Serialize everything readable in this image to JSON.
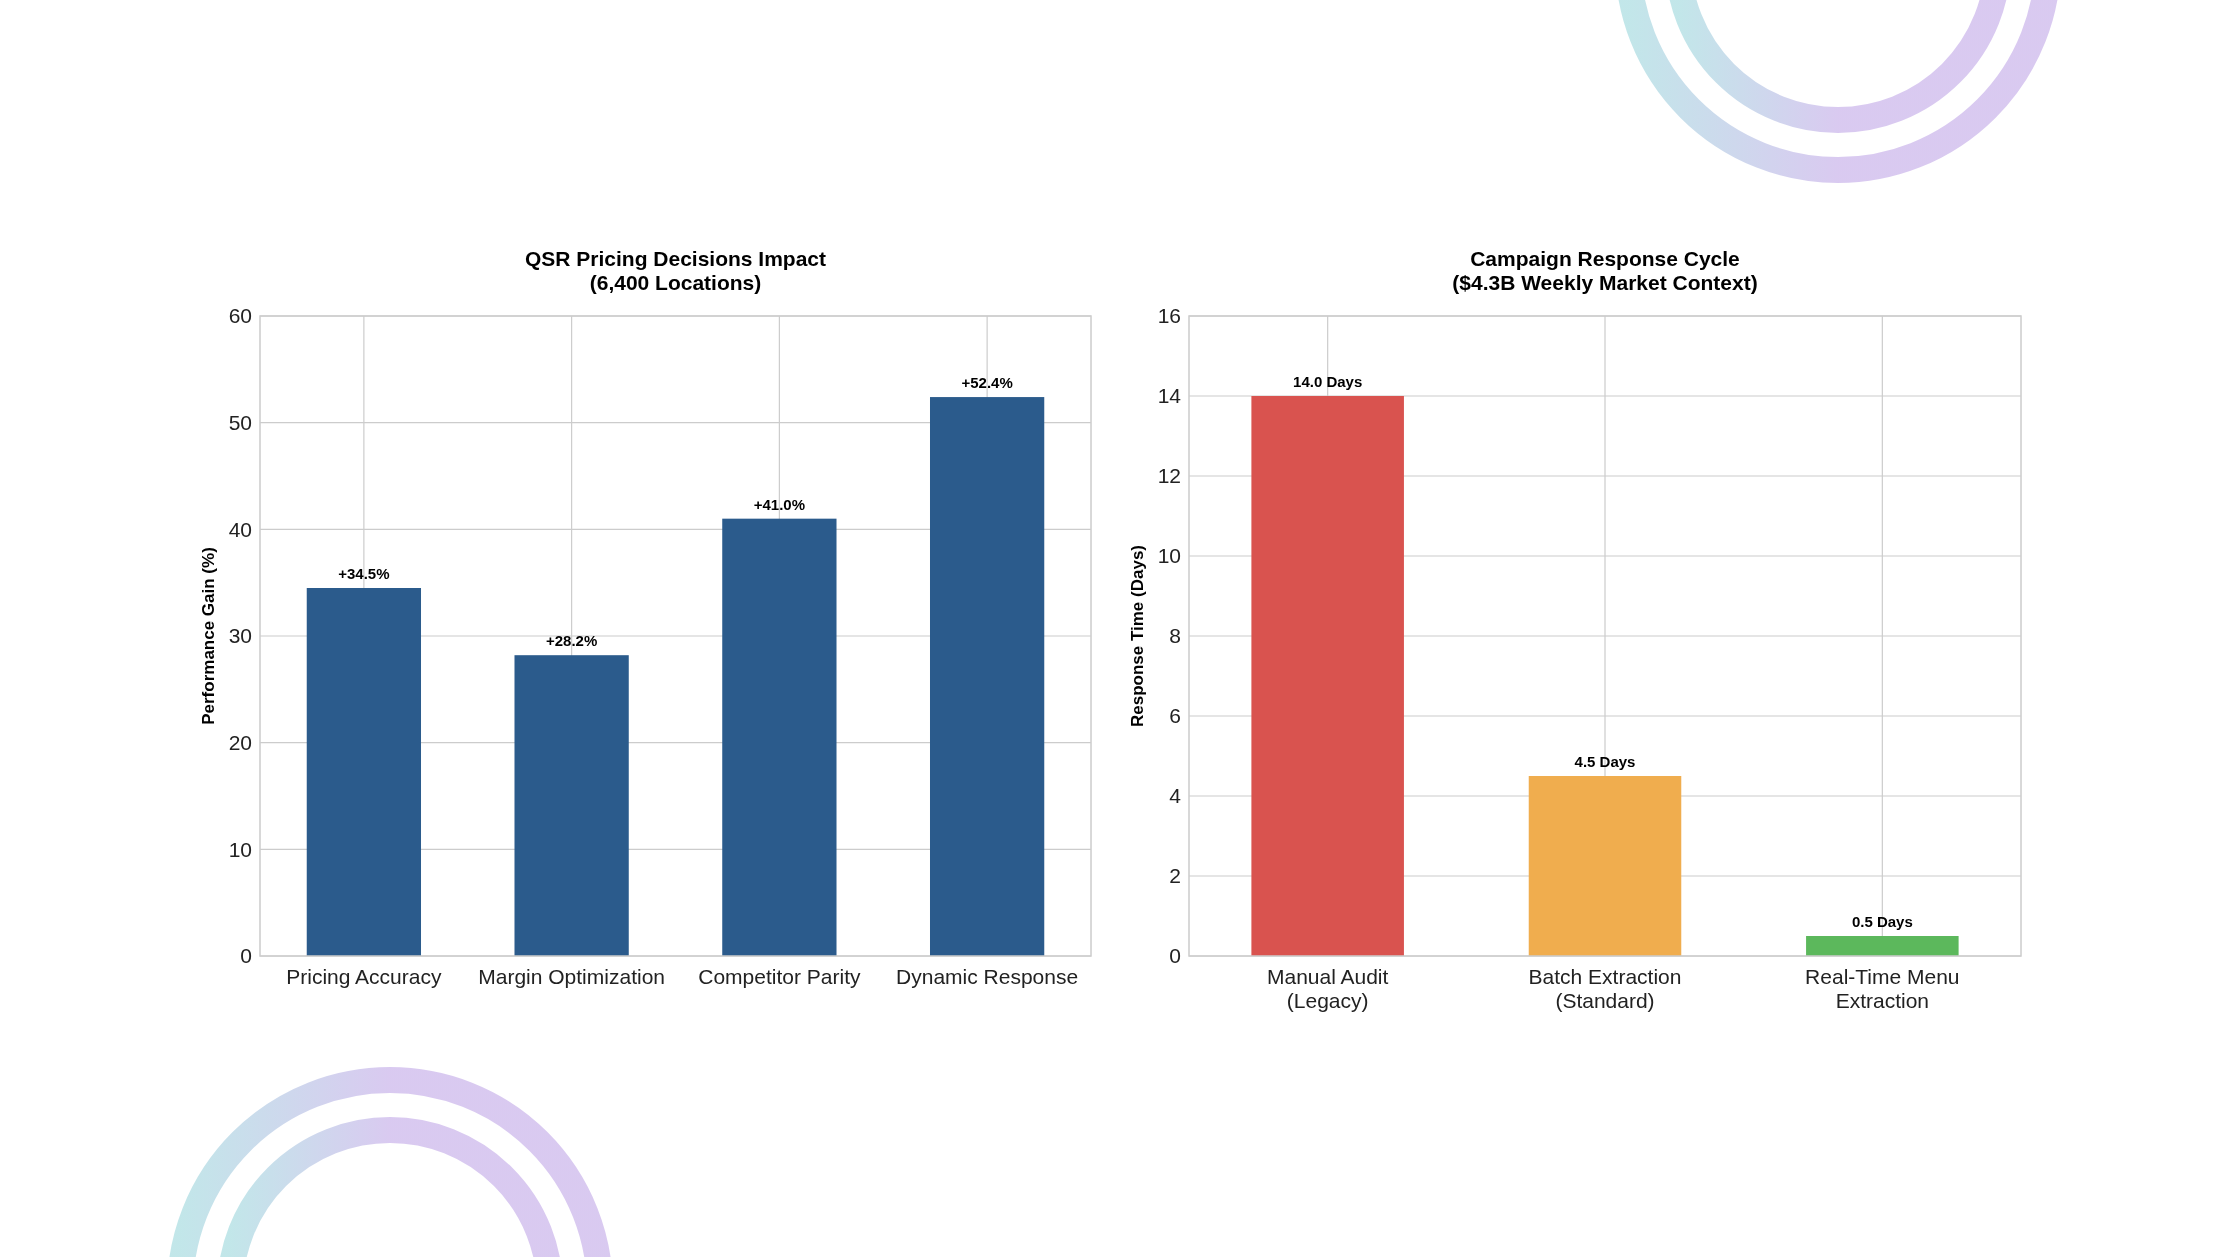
{
  "chart_data": [
    {
      "type": "bar",
      "title": "QSR Pricing Decisions Impact\n(6,400 Locations)",
      "ylabel": "Performance Gain (%)",
      "categories": [
        "Pricing Accuracy",
        "Margin Optimization",
        "Competitor Parity",
        "Dynamic Response"
      ],
      "values": [
        34.5,
        28.2,
        41.0,
        52.4
      ],
      "color": "#2b5b8c",
      "value_labels": [
        "+34.5%",
        "+28.2%",
        "+41.0%",
        "+52.4%"
      ],
      "ylim": [
        0,
        60
      ],
      "yticks": [
        0,
        10,
        20,
        30,
        40,
        50,
        60
      ],
      "grid": true
    },
    {
      "type": "bar",
      "title": "Campaign Response Cycle\n($4.3B Weekly Market Context)",
      "ylabel": "Response Time (Days)",
      "categories": [
        "Manual Audit\n(Legacy)",
        "Batch Extraction\n(Standard)",
        "Real-Time Menu\nExtraction"
      ],
      "values": [
        14.0,
        4.5,
        0.5
      ],
      "colors": [
        "#d9534f",
        "#f0ad4e",
        "#5cb85c"
      ],
      "value_labels": [
        "14.0 Days",
        "4.5 Days",
        "0.5 Days"
      ],
      "ylim": [
        0,
        16
      ],
      "yticks": [
        0,
        2,
        4,
        6,
        8,
        10,
        12,
        14,
        16
      ],
      "grid": true
    }
  ]
}
